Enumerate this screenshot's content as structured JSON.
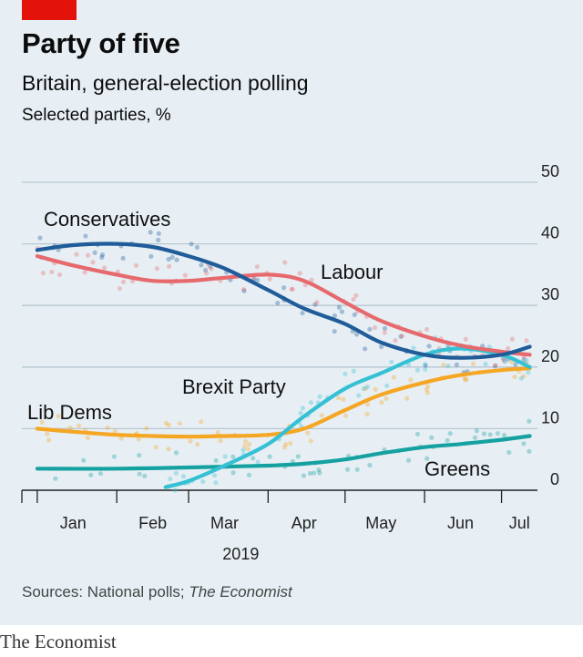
{
  "header": {
    "title": "Party of five",
    "subtitle": "Britain, general-election polling",
    "units": "Selected parties, %"
  },
  "footer": {
    "source_prefix": "Sources: National polls; ",
    "source_italic": "The Economist",
    "brand": "The Economist"
  },
  "colors": {
    "background": "#e7eff4",
    "accent": "#e3120b",
    "conservatives": "#1f5c99",
    "labour": "#e6696e",
    "lib_dems": "#f5a623",
    "brexit_party": "#36c0d3",
    "greens": "#16a1a1"
  },
  "chart_data": {
    "type": "line",
    "title": "Party of five",
    "subtitle": "Britain, general-election polling",
    "ylabel": "Selected parties, %",
    "xlabel": "2019",
    "ylim": [
      0,
      50
    ],
    "xlim": [
      "2018-12-26",
      "2019-07-15"
    ],
    "y_ticks": [
      0,
      10,
      20,
      30,
      40,
      50
    ],
    "x_ticks": [
      {
        "label": "Jan",
        "date": "2019-01-15"
      },
      {
        "label": "Feb",
        "date": "2019-02-15"
      },
      {
        "label": "Mar",
        "date": "2019-03-15"
      },
      {
        "label": "Apr",
        "date": "2019-04-15"
      },
      {
        "label": "May",
        "date": "2019-05-15"
      },
      {
        "label": "Jun",
        "date": "2019-06-15"
      },
      {
        "label": "Jul",
        "date": "2019-07-08"
      }
    ],
    "x_year_label": "2019",
    "grid": true,
    "legend": "direct labels",
    "series": [
      {
        "name": "Conservatives",
        "color": "#1f5c99",
        "points": [
          [
            "2019-01-01",
            39
          ],
          [
            "2019-01-15",
            39.8
          ],
          [
            "2019-02-01",
            40
          ],
          [
            "2019-02-15",
            39.5
          ],
          [
            "2019-03-01",
            38
          ],
          [
            "2019-03-15",
            36
          ],
          [
            "2019-04-01",
            32.5
          ],
          [
            "2019-04-15",
            29.5
          ],
          [
            "2019-05-01",
            27
          ],
          [
            "2019-05-15",
            24
          ],
          [
            "2019-06-01",
            22
          ],
          [
            "2019-06-15",
            21.5
          ],
          [
            "2019-07-01",
            22
          ],
          [
            "2019-07-12",
            23.3
          ]
        ]
      },
      {
        "name": "Labour",
        "color": "#e6696e",
        "points": [
          [
            "2019-01-01",
            38
          ],
          [
            "2019-01-15",
            36.5
          ],
          [
            "2019-02-01",
            35
          ],
          [
            "2019-02-15",
            34
          ],
          [
            "2019-03-01",
            34
          ],
          [
            "2019-03-15",
            34.5
          ],
          [
            "2019-04-01",
            35
          ],
          [
            "2019-04-15",
            34
          ],
          [
            "2019-05-01",
            30.5
          ],
          [
            "2019-05-15",
            27.5
          ],
          [
            "2019-06-01",
            25
          ],
          [
            "2019-06-15",
            23.5
          ],
          [
            "2019-07-01",
            22.5
          ],
          [
            "2019-07-12",
            22
          ]
        ]
      },
      {
        "name": "Lib Dems",
        "color": "#f5a623",
        "points": [
          [
            "2019-01-01",
            10
          ],
          [
            "2019-01-15",
            9.5
          ],
          [
            "2019-02-01",
            9
          ],
          [
            "2019-02-15",
            8.8
          ],
          [
            "2019-03-01",
            8.7
          ],
          [
            "2019-03-15",
            8.8
          ],
          [
            "2019-04-01",
            9
          ],
          [
            "2019-04-15",
            10
          ],
          [
            "2019-05-01",
            13
          ],
          [
            "2019-05-15",
            15.5
          ],
          [
            "2019-06-01",
            17.5
          ],
          [
            "2019-06-15",
            18.7
          ],
          [
            "2019-07-01",
            19.5
          ],
          [
            "2019-07-12",
            19.8
          ]
        ]
      },
      {
        "name": "Brexit Party",
        "color": "#36c0d3",
        "points": [
          [
            "2019-02-20",
            0.5
          ],
          [
            "2019-03-01",
            1.5
          ],
          [
            "2019-03-15",
            4
          ],
          [
            "2019-04-01",
            7.5
          ],
          [
            "2019-04-15",
            12
          ],
          [
            "2019-05-01",
            16.5
          ],
          [
            "2019-05-15",
            19
          ],
          [
            "2019-06-01",
            22
          ],
          [
            "2019-06-15",
            23
          ],
          [
            "2019-07-01",
            22
          ],
          [
            "2019-07-12",
            20
          ]
        ]
      },
      {
        "name": "Greens",
        "color": "#16a1a1",
        "points": [
          [
            "2019-01-01",
            3.5
          ],
          [
            "2019-02-01",
            3.5
          ],
          [
            "2019-03-01",
            3.7
          ],
          [
            "2019-04-01",
            4
          ],
          [
            "2019-04-15",
            4.3
          ],
          [
            "2019-05-01",
            5
          ],
          [
            "2019-05-15",
            6
          ],
          [
            "2019-06-01",
            7
          ],
          [
            "2019-06-15",
            7.5
          ],
          [
            "2019-07-01",
            8.2
          ],
          [
            "2019-07-12",
            8.8
          ]
        ]
      }
    ]
  }
}
